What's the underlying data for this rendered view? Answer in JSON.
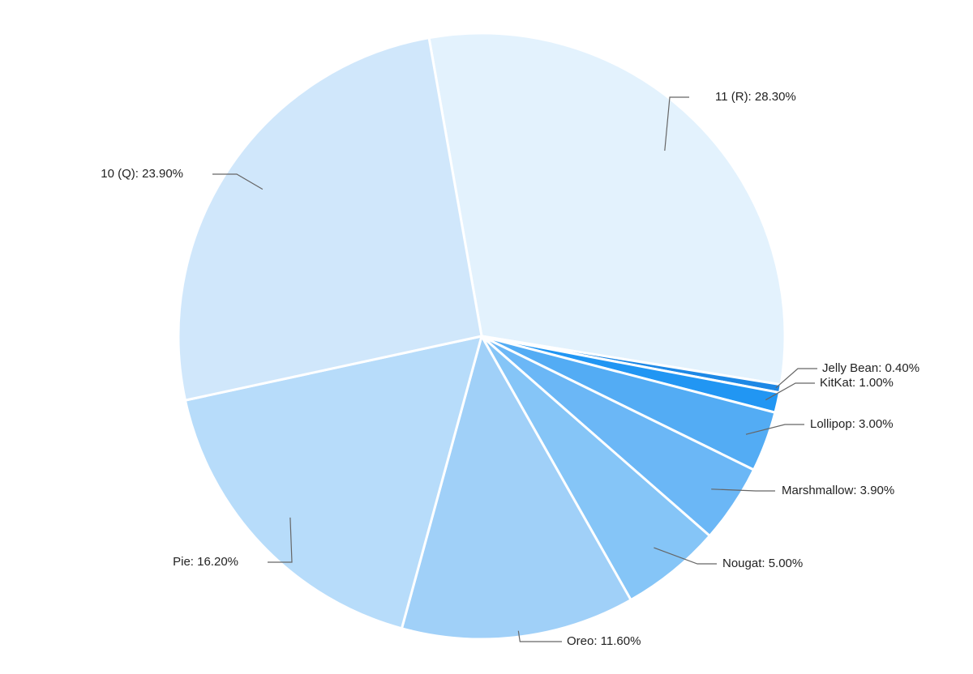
{
  "chart_data": {
    "type": "pie",
    "title": "",
    "slices": [
      {
        "name": "11 (R)",
        "value": 28.3,
        "label": "11 (R): 28.30%",
        "color": "#e3f2fd"
      },
      {
        "name": "Jelly Bean",
        "value": 0.4,
        "label": "Jelly Bean: 0.40%",
        "color": "#1e88e5"
      },
      {
        "name": "KitKat",
        "value": 1.0,
        "label": "KitKat: 1.00%",
        "color": "#2196f3"
      },
      {
        "name": "Lollipop",
        "value": 3.0,
        "label": "Lollipop: 3.00%",
        "color": "#53acf4"
      },
      {
        "name": "Marshmallow",
        "value": 3.9,
        "label": "Marshmallow: 3.90%",
        "color": "#6bb7f6"
      },
      {
        "name": "Nougat",
        "value": 5.0,
        "label": "Nougat: 5.00%",
        "color": "#85c5f7"
      },
      {
        "name": "Oreo",
        "value": 11.6,
        "label": "Oreo: 11.60%",
        "color": "#a0d0f8"
      },
      {
        "name": "Pie",
        "value": 16.2,
        "label": "Pie: 16.20%",
        "color": "#b7dcfa"
      },
      {
        "name": "10 (Q)",
        "value": 23.9,
        "label": "10 (Q): 23.90%",
        "color": "#d0e7fb"
      }
    ],
    "start_angle_deg": -10,
    "direction": "clockwise",
    "legend": "none",
    "labels": "outside-with-leader-lines"
  }
}
